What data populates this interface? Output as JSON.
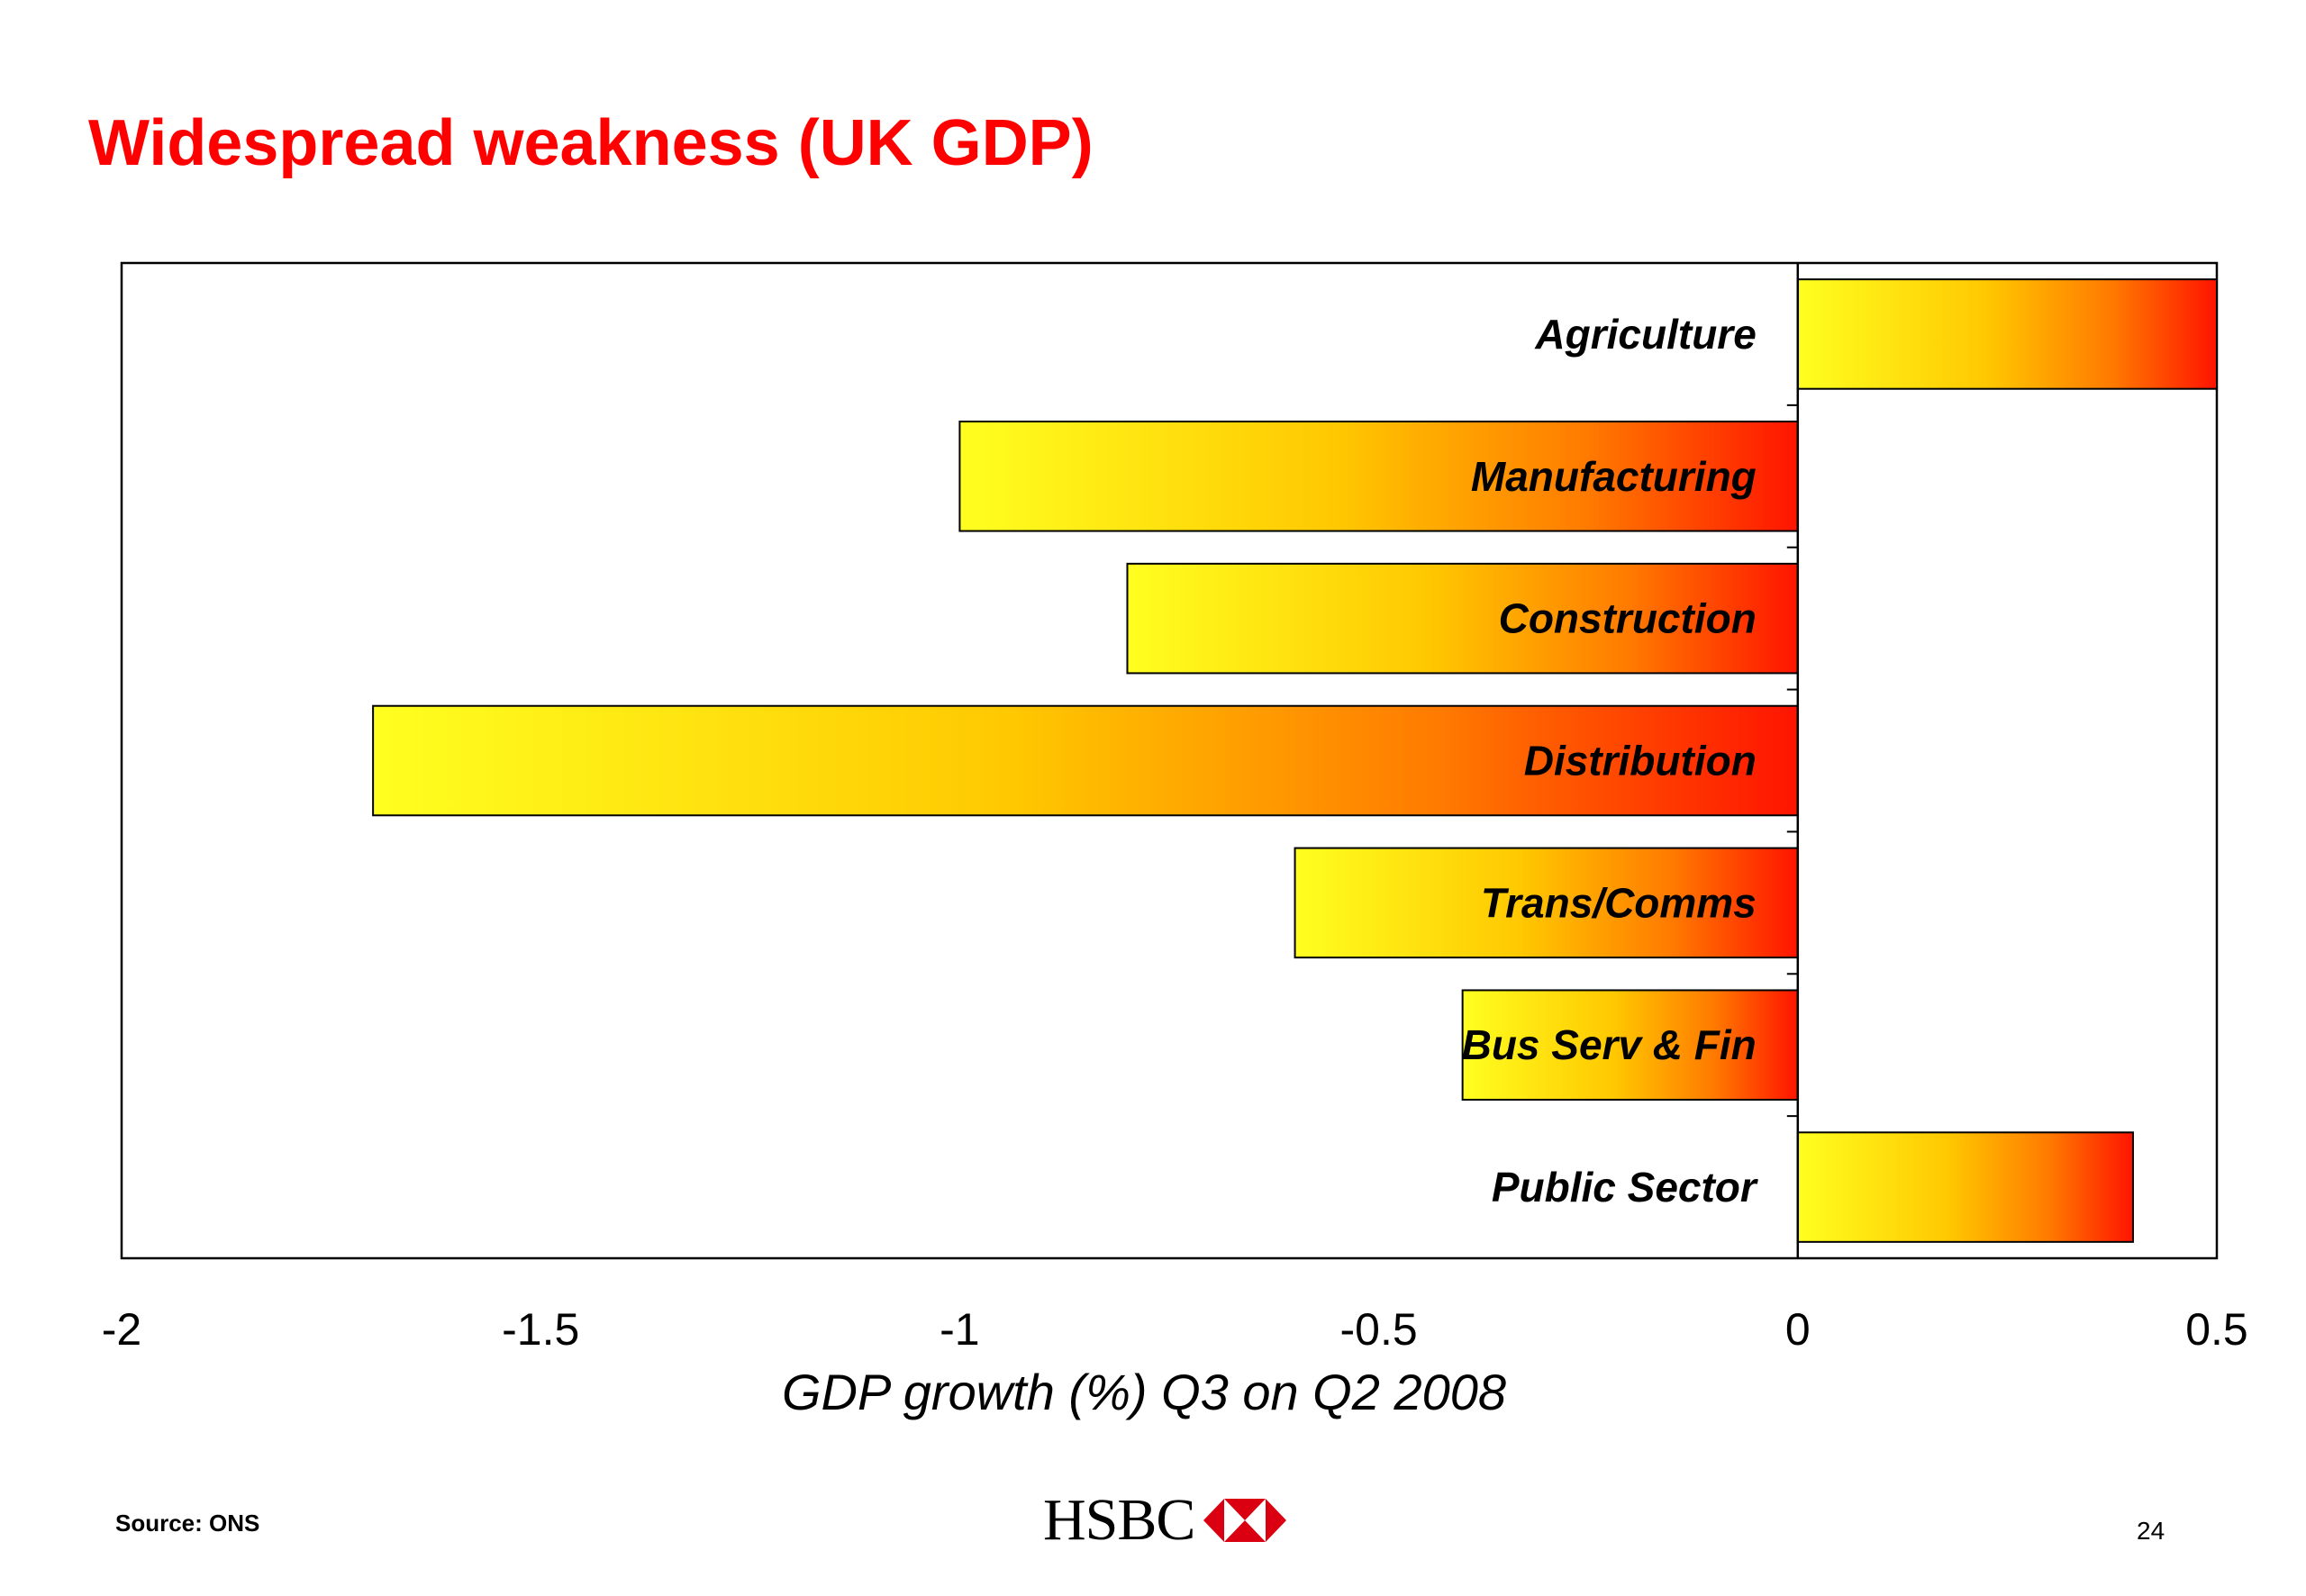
{
  "slide": {
    "title": "Widespread weakness (UK GDP)",
    "source": "Source: ONS",
    "page_number": "24",
    "logo_text": "HSBC",
    "colors": {
      "title": "#ff0000",
      "bar_start": "#ffff20",
      "bar_end": "#ff1400",
      "logo_red": "#db0011"
    }
  },
  "chart_data": {
    "type": "bar",
    "orientation": "horizontal",
    "title": "Widespread weakness (UK GDP)",
    "xlabel": "GDP growth (%) Q3 on Q2 2008",
    "ylabel": "",
    "xlim": [
      -2,
      0.5
    ],
    "xticks": [
      "-2",
      "-1.5",
      "-1",
      "-0.5",
      "0",
      "0.5"
    ],
    "categories": [
      "Agriculture",
      "Manufacturing",
      "Construction",
      "Distribution",
      "Trans/Comms",
      "Bus Serv & Fin",
      "Public Sector"
    ],
    "values": [
      0.5,
      -1.0,
      -0.8,
      -1.7,
      -0.6,
      -0.4,
      0.4
    ],
    "grid": false,
    "legend": "none"
  }
}
